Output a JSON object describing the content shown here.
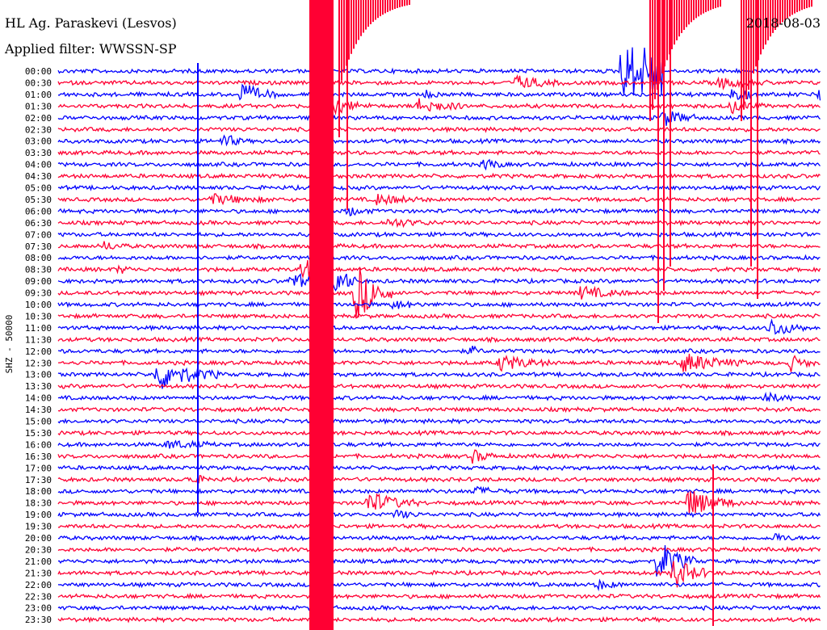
{
  "header": {
    "station": "HL Ag. Paraskevi (Lesvos)",
    "date": "2018-08-03",
    "filter": "Applied filter: WWSSN-SP"
  },
  "chart_data": {
    "type": "line",
    "ylabel": "SHZ - 50000",
    "row_labels": [
      "00:00",
      "00:30",
      "01:00",
      "01:30",
      "02:00",
      "02:30",
      "03:00",
      "03:30",
      "04:00",
      "04:30",
      "05:00",
      "05:30",
      "06:00",
      "06:30",
      "07:00",
      "07:30",
      "08:00",
      "08:30",
      "09:00",
      "09:30",
      "10:00",
      "10:30",
      "11:00",
      "11:30",
      "12:00",
      "12:30",
      "13:00",
      "13:30",
      "14:00",
      "14:30",
      "15:00",
      "15:30",
      "16:00",
      "16:30",
      "17:00",
      "17:30",
      "18:00",
      "18:30",
      "19:00",
      "19:30",
      "20:00",
      "20:30",
      "21:00",
      "21:30",
      "22:00",
      "22:30",
      "23:00",
      "23:30"
    ],
    "trace_colors": [
      "#0000ff",
      "#ff0033"
    ],
    "minutes_per_row": 30,
    "events": [
      {
        "row": 0,
        "minute": 22.5,
        "amp": 30,
        "dur": 6,
        "kind": "huge"
      },
      {
        "row": 1,
        "minute": 18,
        "amp": 8,
        "dur": 2
      },
      {
        "row": 1,
        "minute": 26,
        "amp": 6,
        "dur": 2
      },
      {
        "row": 2,
        "minute": 7.2,
        "amp": 14,
        "dur": 1.5
      },
      {
        "row": 2,
        "minute": 14.5,
        "amp": 4,
        "dur": 1
      },
      {
        "row": 2,
        "minute": 26.5,
        "amp": 10,
        "dur": 1.2
      },
      {
        "row": 2,
        "minute": 30,
        "amp": 26,
        "dur": 4,
        "kind": "big"
      },
      {
        "row": 2,
        "minute": 47,
        "amp": 16,
        "dur": 3.5,
        "kind": "big"
      },
      {
        "row": 3,
        "minute": 10.5,
        "amp": 12,
        "dur": 1.8
      },
      {
        "row": 3,
        "minute": 14.2,
        "amp": 10,
        "dur": 1.8
      },
      {
        "row": 3,
        "minute": 26.5,
        "amp": 8,
        "dur": 1.3
      },
      {
        "row": 4,
        "minute": 23.8,
        "amp": 10,
        "dur": 1.5
      },
      {
        "row": 6,
        "minute": 6.5,
        "amp": 10,
        "dur": 0.8
      },
      {
        "row": 8,
        "minute": 16.8,
        "amp": 8,
        "dur": 0.8
      },
      {
        "row": 11,
        "minute": 6,
        "amp": 6,
        "dur": 2.5
      },
      {
        "row": 11,
        "minute": 12.5,
        "amp": 6,
        "dur": 2
      },
      {
        "row": 12,
        "minute": 11.4,
        "amp": 5,
        "dur": 1
      },
      {
        "row": 13,
        "minute": 13,
        "amp": 5,
        "dur": 2
      },
      {
        "row": 15,
        "minute": 1.8,
        "amp": 5,
        "dur": 1
      },
      {
        "row": 17,
        "minute": 2.4,
        "amp": 5,
        "dur": 0.6
      },
      {
        "row": 17,
        "minute": 9.6,
        "amp": 16,
        "dur": 1
      },
      {
        "row": 18,
        "minute": 9.2,
        "amp": 10,
        "dur": 1.5
      },
      {
        "row": 18,
        "minute": 10.8,
        "amp": 24,
        "dur": 1
      },
      {
        "row": 19,
        "minute": 11.7,
        "amp": 38,
        "dur": 1.5,
        "kind": "big"
      },
      {
        "row": 19,
        "minute": 20.5,
        "amp": 8,
        "dur": 2
      },
      {
        "row": 20,
        "minute": 13.2,
        "amp": 5,
        "dur": 1.2
      },
      {
        "row": 22,
        "minute": 28,
        "amp": 12,
        "dur": 1.5
      },
      {
        "row": 24,
        "minute": 16.2,
        "amp": 6,
        "dur": 0.6
      },
      {
        "row": 25,
        "minute": 17.4,
        "amp": 10,
        "dur": 2
      },
      {
        "row": 25,
        "minute": 24.6,
        "amp": 12,
        "dur": 2.5
      },
      {
        "row": 25,
        "minute": 30.5,
        "amp": 5,
        "dur": 2
      },
      {
        "row": 25,
        "minute": 28.8,
        "amp": 10,
        "dur": 1
      },
      {
        "row": 26,
        "minute": 3.9,
        "amp": 20,
        "dur": 2.5,
        "kind": "big"
      },
      {
        "row": 28,
        "minute": 27.8,
        "amp": 6,
        "dur": 1.2
      },
      {
        "row": 32,
        "minute": 4.3,
        "amp": 5,
        "dur": 2
      },
      {
        "row": 33,
        "minute": 16.3,
        "amp": 8,
        "dur": 1
      },
      {
        "row": 35,
        "minute": 5.2,
        "amp": 6,
        "dur": 1
      },
      {
        "row": 36,
        "minute": 16.3,
        "amp": 5,
        "dur": 1.5
      },
      {
        "row": 37,
        "minute": 12.2,
        "amp": 14,
        "dur": 2
      },
      {
        "row": 37,
        "minute": 24.8,
        "amp": 18,
        "dur": 2
      },
      {
        "row": 38,
        "minute": 13.3,
        "amp": 5,
        "dur": 1
      },
      {
        "row": 40,
        "minute": 28.2,
        "amp": 5,
        "dur": 0.8
      },
      {
        "row": 42,
        "minute": 23.6,
        "amp": 28,
        "dur": 1.5
      },
      {
        "row": 43,
        "minute": 24.2,
        "amp": 20,
        "dur": 1.5
      },
      {
        "row": 44,
        "minute": 21.2,
        "amp": 5,
        "dur": 1.2
      }
    ]
  }
}
